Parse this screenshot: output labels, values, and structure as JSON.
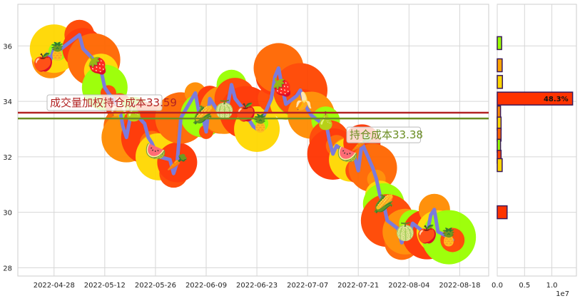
{
  "chart_data": [
    {
      "type": "line",
      "x": [
        "2022-04-25",
        "2022-04-26",
        "2022-04-27",
        "2022-04-28",
        "2022-04-29",
        "2022-05-05",
        "2022-05-06",
        "2022-05-09",
        "2022-05-10",
        "2022-05-11",
        "2022-05-12",
        "2022-05-13",
        "2022-05-16",
        "2022-05-17",
        "2022-05-18",
        "2022-05-19",
        "2022-05-20",
        "2022-05-23",
        "2022-05-24",
        "2022-05-25",
        "2022-05-26",
        "2022-05-27",
        "2022-05-30",
        "2022-05-31",
        "2022-06-01",
        "2022-06-02",
        "2022-06-06",
        "2022-06-07",
        "2022-06-08",
        "2022-06-09",
        "2022-06-10",
        "2022-06-13",
        "2022-06-14",
        "2022-06-15",
        "2022-06-16",
        "2022-06-17",
        "2022-06-20",
        "2022-06-21",
        "2022-06-22",
        "2022-06-23",
        "2022-06-24",
        "2022-06-27",
        "2022-06-28",
        "2022-06-29",
        "2022-06-30",
        "2022-07-01",
        "2022-07-04",
        "2022-07-05",
        "2022-07-06",
        "2022-07-07",
        "2022-07-08",
        "2022-07-11",
        "2022-07-12",
        "2022-07-13",
        "2022-07-14",
        "2022-07-15",
        "2022-07-18",
        "2022-07-19",
        "2022-07-20",
        "2022-07-21",
        "2022-07-22",
        "2022-07-25",
        "2022-07-26",
        "2022-07-27",
        "2022-07-28",
        "2022-07-29",
        "2022-08-01",
        "2022-08-02",
        "2022-08-03",
        "2022-08-04",
        "2022-08-05",
        "2022-08-08",
        "2022-08-09",
        "2022-08-10",
        "2022-08-11",
        "2022-08-12",
        "2022-08-15",
        "2022-08-16"
      ],
      "values": [
        35.4,
        35.7,
        35.5,
        35.9,
        35.8,
        36.4,
        35.9,
        35.5,
        35.3,
        35.1,
        34.5,
        34.3,
        33.8,
        33.1,
        32.7,
        33.4,
        33.6,
        33.2,
        32.7,
        32.5,
        32.2,
        32.0,
        31.9,
        31.4,
        31.8,
        33.4,
        34.3,
        33.6,
        33.5,
        32.9,
        34.1,
        33.5,
        33.7,
        33.9,
        34.6,
        34.1,
        33.6,
        33.3,
        33.1,
        33.0,
        33.2,
        34.1,
        34.9,
        35.2,
        34.5,
        33.9,
        34.2,
        34.4,
        34.0,
        33.7,
        33.5,
        33.2,
        33.3,
        32.6,
        32.1,
        32.4,
        32.1,
        31.9,
        32.0,
        31.5,
        32.5,
        31.6,
        31.2,
        30.6,
        30.3,
        29.7,
        29.4,
        28.9,
        29.3,
        29.1,
        29.6,
        29.3,
        29.2,
        29.9,
        30.1,
        29.3,
        29.1,
        29.0
      ],
      "ylim": [
        27.7,
        37.5
      ],
      "yticks": [
        "28",
        "30",
        "32",
        "34",
        "36"
      ],
      "xticks": [
        "2022-04-28",
        "2022-05-12",
        "2022-05-26",
        "2022-06-09",
        "2022-06-23",
        "2022-07-07",
        "2022-07-21",
        "2022-08-04",
        "2022-08-18"
      ],
      "hlines": [
        {
          "label": "成交量加权持仓成本33.59",
          "value": 33.59,
          "color": "#b22222"
        },
        {
          "label": "持仓成本33.38",
          "value": 33.38,
          "color": "#6b8e23"
        }
      ],
      "line_color": "#7b7bdc",
      "grid": true
    },
    {
      "type": "bar",
      "orientation": "horizontal",
      "bins": [
        36.1,
        35.3,
        34.7,
        34.1,
        33.6,
        33.2,
        32.8,
        32.4,
        32.0,
        31.7,
        30.0
      ],
      "values": [
        800000,
        900000,
        950000,
        13800000,
        600000,
        700000,
        700000,
        600000,
        700000,
        900000,
        1800000
      ],
      "highlight_label": "48.3%",
      "xlim": [
        0,
        14500000
      ],
      "xticks": [
        "0.0",
        "0.5",
        "1.0"
      ],
      "xscale_label": "1e7"
    }
  ]
}
